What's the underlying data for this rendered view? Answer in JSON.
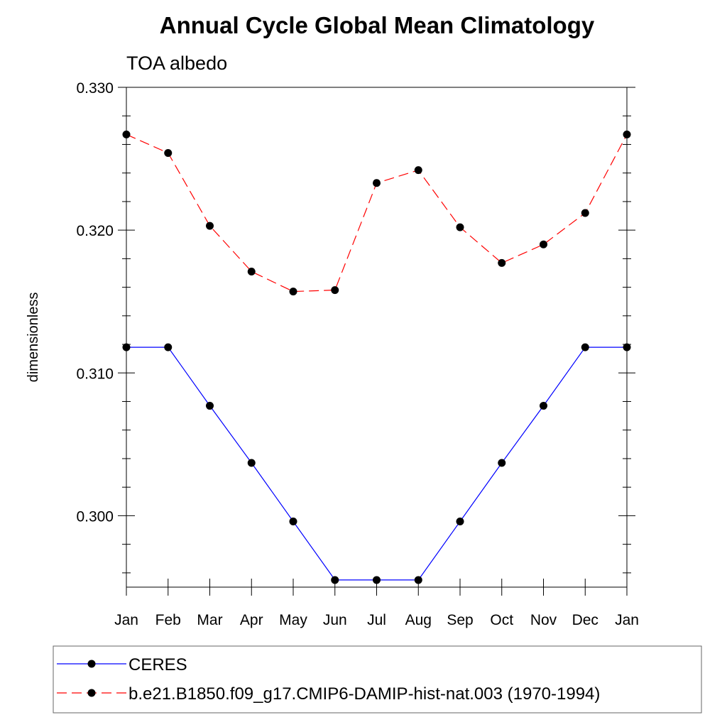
{
  "chart_data": {
    "type": "line",
    "title": "Annual Cycle Global Mean Climatology",
    "subtitle": "TOA albedo",
    "xlabel": "",
    "ylabel": "dimensionless",
    "categories": [
      "Jan",
      "Feb",
      "Mar",
      "Apr",
      "May",
      "Jun",
      "Jul",
      "Aug",
      "Sep",
      "Oct",
      "Nov",
      "Dec",
      "Jan"
    ],
    "ylim": [
      0.295,
      0.33
    ],
    "yticks": [
      0.3,
      0.31,
      0.32,
      0.33
    ],
    "ytick_labels": [
      "0.300",
      "0.310",
      "0.320",
      "0.330"
    ],
    "grid": false,
    "legend_position": "bottom",
    "series": [
      {
        "name": "CERES",
        "color": "#0000ff",
        "dash": "solid",
        "marker": "filled-circle",
        "values": [
          0.3118,
          0.3118,
          0.3077,
          0.3037,
          0.2996,
          0.2955,
          0.2955,
          0.2955,
          0.2996,
          0.3037,
          0.3077,
          0.3118,
          0.3118
        ]
      },
      {
        "name": "b.e21.B1850.f09_g17.CMIP6-DAMIP-hist-nat.003 (1970-1994)",
        "color": "#ff0000",
        "dash": "dashed",
        "marker": "filled-circle",
        "values": [
          0.3267,
          0.3254,
          0.3203,
          0.3171,
          0.3157,
          0.3158,
          0.3233,
          0.3242,
          0.3202,
          0.3177,
          0.319,
          0.3212,
          0.3267
        ]
      }
    ]
  }
}
